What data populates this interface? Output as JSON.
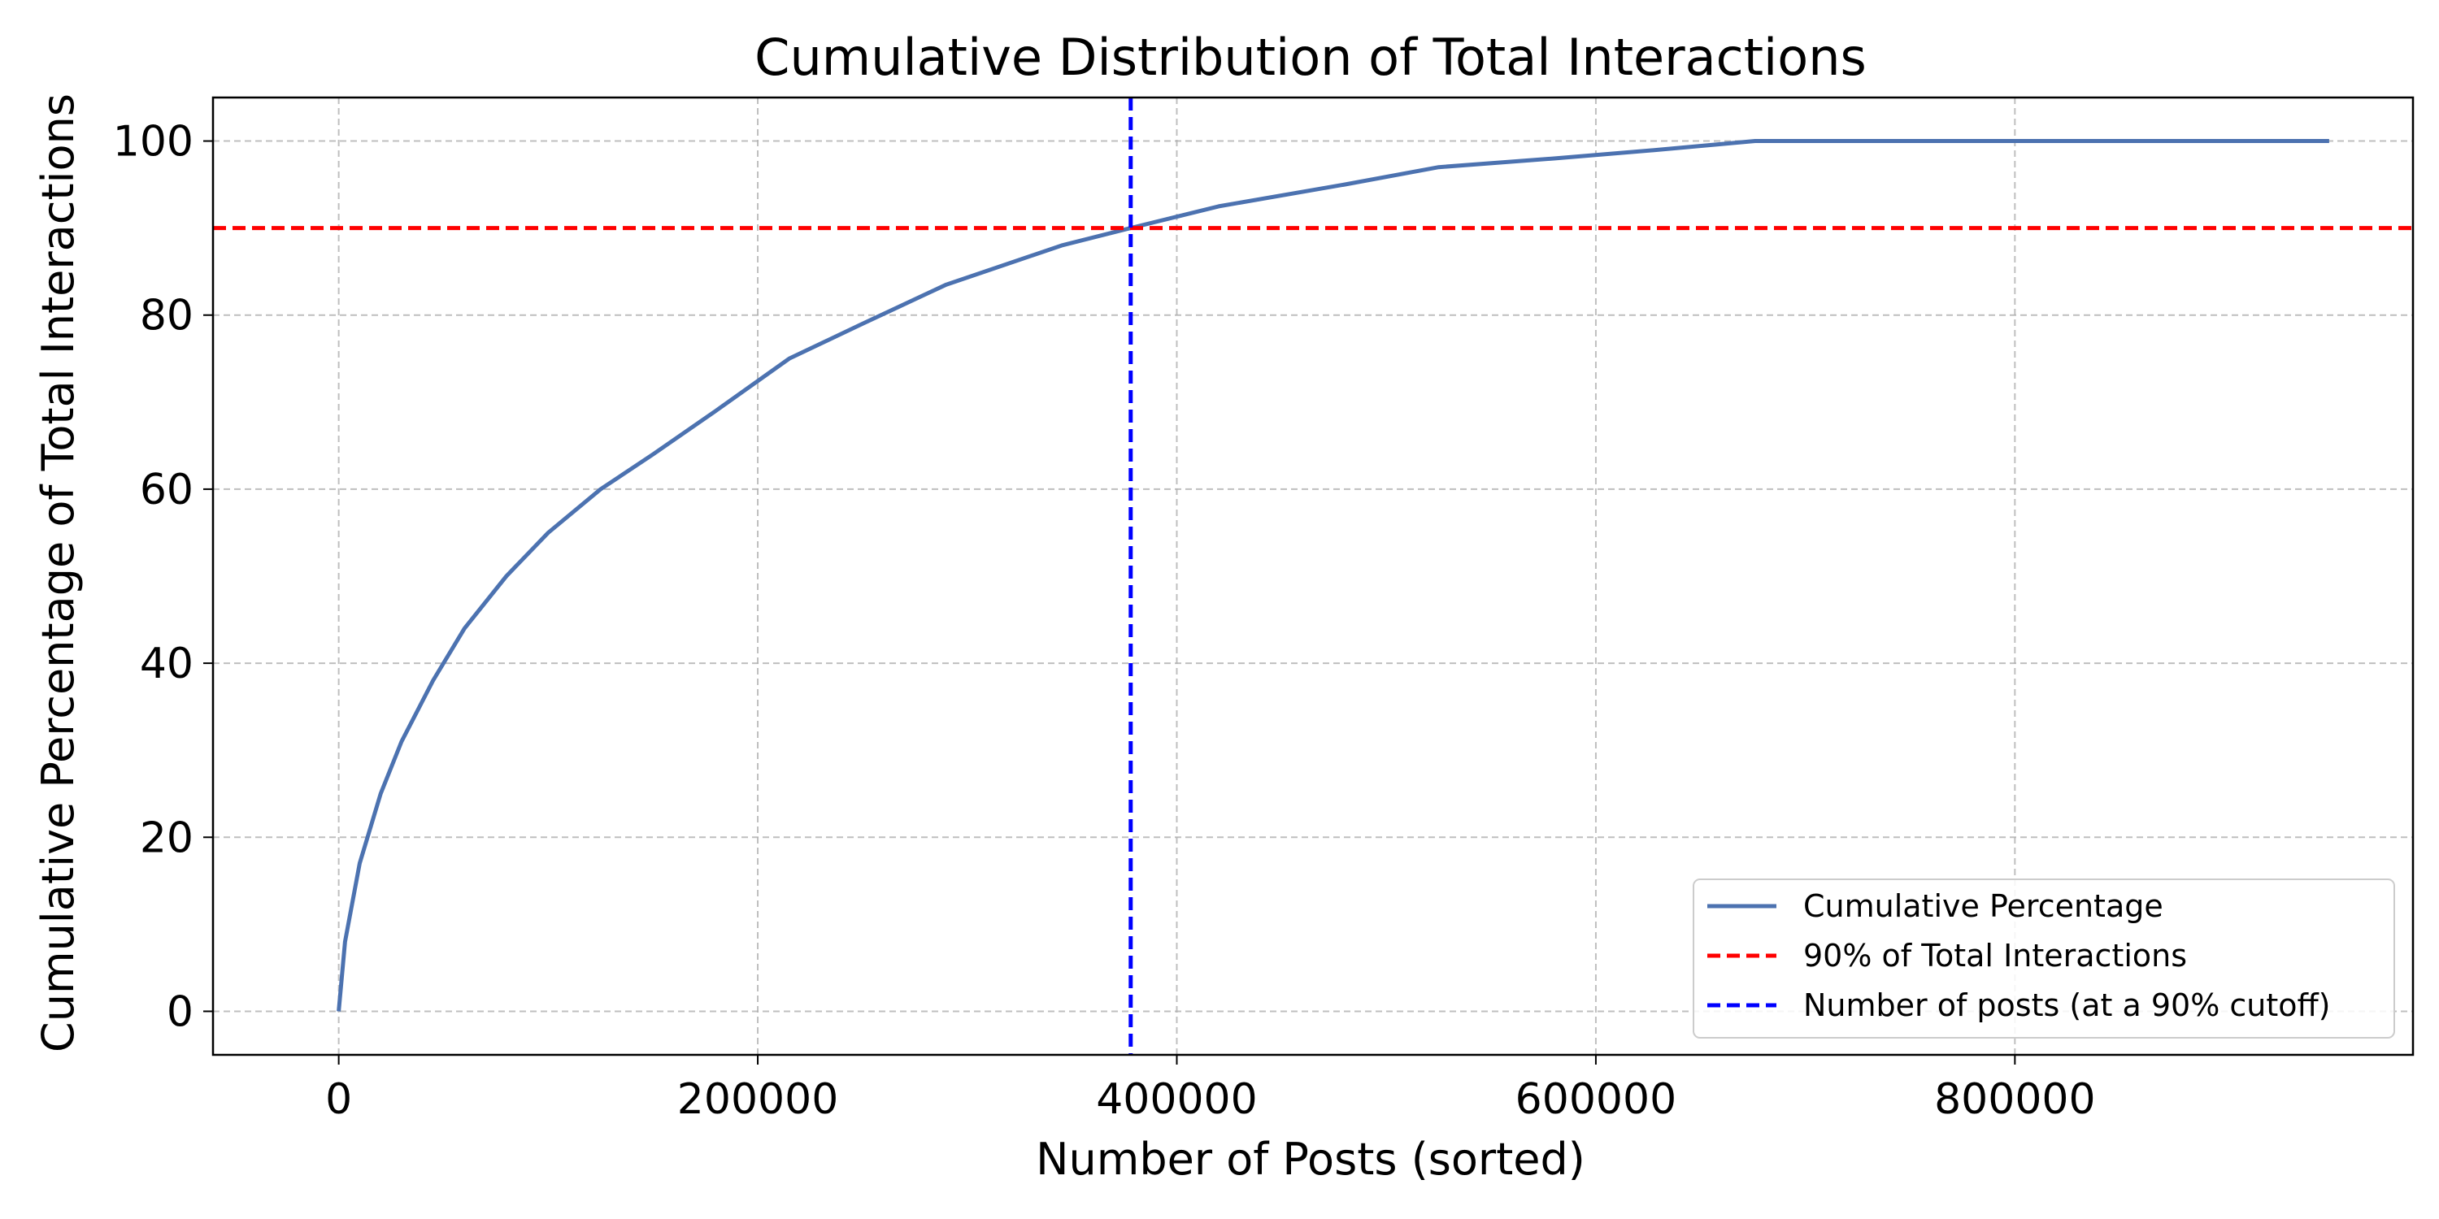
{
  "chart_data": {
    "type": "line",
    "title": "Cumulative Distribution of Total Interactions",
    "xlabel": "Number of Posts (sorted)",
    "ylabel": "Cumulative Percentage of Total Interactions",
    "xlim": [
      -60000,
      990000
    ],
    "ylim": [
      -5,
      105
    ],
    "xticks": [
      0,
      200000,
      400000,
      600000,
      800000
    ],
    "xtick_labels": [
      "0",
      "200000",
      "400000",
      "600000",
      "800000"
    ],
    "yticks": [
      0,
      20,
      40,
      60,
      80,
      100
    ],
    "ytick_labels": [
      "0",
      "20",
      "40",
      "60",
      "80",
      "100"
    ],
    "grid": true,
    "legend_position": "lower-right",
    "series": [
      {
        "name": "Cumulative Percentage",
        "color": "#4c72b0",
        "line_style": "solid",
        "x": [
          0,
          3000,
          10000,
          20000,
          30000,
          45000,
          60000,
          80000,
          100000,
          125000,
          150000,
          180000,
          215000,
          250000,
          290000,
          345000,
          378000,
          420000,
          480000,
          525000,
          580000,
          630000,
          676000,
          700000,
          800000,
          950000
        ],
        "y": [
          0,
          8,
          17,
          25,
          31,
          38,
          44,
          50,
          55,
          60,
          64,
          69,
          75,
          79,
          83.5,
          88,
          90,
          92.5,
          95,
          97,
          98,
          99,
          100,
          100,
          100,
          100
        ]
      },
      {
        "name": "90% of Total Interactions",
        "color": "#ff0000",
        "line_style": "dashed",
        "orientation": "horizontal",
        "y_value": 90
      },
      {
        "name": "Number of posts (at a 90% cutoff)",
        "color": "#0000ff",
        "line_style": "dashed",
        "orientation": "vertical",
        "x_value": 378000
      }
    ]
  }
}
